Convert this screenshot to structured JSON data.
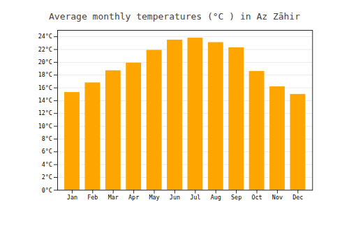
{
  "chart_data": {
    "type": "bar",
    "title": "Average monthly temperatures (°C ) in Az Zāhir",
    "categories": [
      "Jan",
      "Feb",
      "Mar",
      "Apr",
      "May",
      "Jun",
      "Jul",
      "Aug",
      "Sep",
      "Oct",
      "Nov",
      "Dec"
    ],
    "values": [
      15.3,
      16.8,
      18.7,
      19.9,
      21.9,
      23.5,
      23.8,
      23.1,
      22.3,
      18.6,
      16.2,
      15.0
    ],
    "color": "#FFA500",
    "ylim": [
      0,
      25
    ],
    "yticks": [
      {
        "value": 0,
        "label": "0°C"
      },
      {
        "value": 2,
        "label": "2°C"
      },
      {
        "value": 4,
        "label": "4°C"
      },
      {
        "value": 6,
        "label": "6°C"
      },
      {
        "value": 8,
        "label": "8°C"
      },
      {
        "value": 10,
        "label": "10°C"
      },
      {
        "value": 12,
        "label": "12°C"
      },
      {
        "value": 14,
        "label": "14°C"
      },
      {
        "value": 16,
        "label": "16°C"
      },
      {
        "value": 18,
        "label": "18°C"
      },
      {
        "value": 20,
        "label": "20°C"
      },
      {
        "value": 22,
        "label": "22°C"
      },
      {
        "value": 24,
        "label": "24°C"
      }
    ],
    "grid": true
  }
}
